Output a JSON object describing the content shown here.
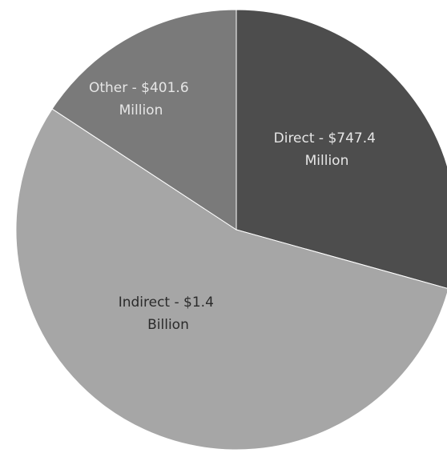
{
  "chart_data": {
    "type": "pie",
    "title": "",
    "start_angle_deg": 0,
    "direction": "clockwise",
    "slices": [
      {
        "label": "Direct - $747.4 Million",
        "value": 747.4,
        "unit": "Million",
        "color": "#4d4d4d",
        "label_color": "#e6e6e6"
      },
      {
        "label": "Indirect - $1.4 Billion",
        "value": 1400,
        "unit": "Million",
        "color": "#a6a6a6",
        "label_color": "#2b2b2b"
      },
      {
        "label": "Other - $401.6 Million",
        "value": 401.6,
        "unit": "Million",
        "color": "#7a7a7a",
        "label_color": "#e6e6e6"
      }
    ]
  }
}
